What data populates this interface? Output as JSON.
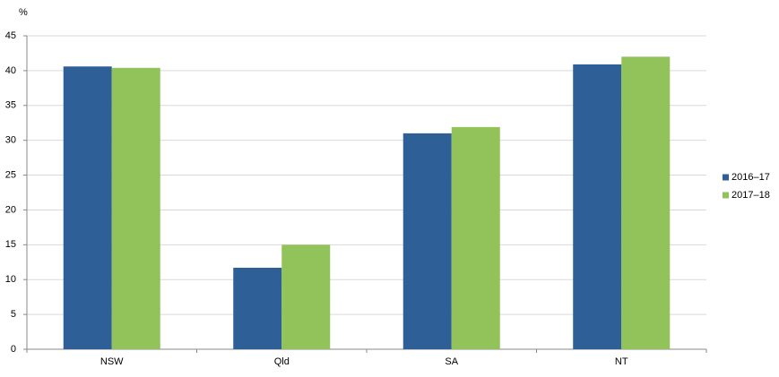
{
  "chart_data": {
    "type": "bar",
    "y_label": "%",
    "categories": [
      "NSW",
      "Qld",
      "SA",
      "NT"
    ],
    "series": [
      {
        "name": "2016–17",
        "color": "#2e5f96",
        "values": [
          40.6,
          11.7,
          31.0,
          40.9
        ]
      },
      {
        "name": "2017–18",
        "color": "#92c35a",
        "values": [
          40.4,
          15.0,
          31.9,
          42.0
        ]
      }
    ],
    "ylim": [
      0,
      45
    ],
    "yticks": [
      0,
      5,
      10,
      15,
      20,
      25,
      30,
      35,
      40,
      45
    ],
    "grid": true,
    "legend": "right"
  }
}
